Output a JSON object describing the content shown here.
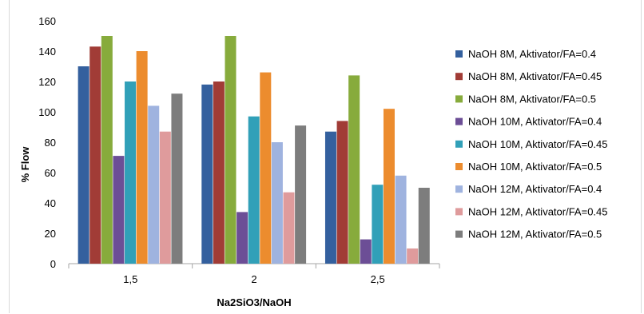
{
  "chart_data": {
    "type": "bar",
    "title": "",
    "xlabel": "Na2SiO3/NaOH",
    "ylabel": "% Flow",
    "ylim": [
      0,
      160
    ],
    "yticks": [
      0,
      20,
      40,
      60,
      80,
      100,
      120,
      140,
      160
    ],
    "categories": [
      "1,5",
      "2",
      "2,5"
    ],
    "grid": false,
    "legend_position": "right",
    "series": [
      {
        "name": "NaOH 8M, Aktivator/FA=0.4",
        "color": "#34609e",
        "values": [
          130,
          118,
          87
        ]
      },
      {
        "name": "NaOH 8M, Aktivator/FA=0.45",
        "color": "#a13c36",
        "values": [
          143,
          120,
          94
        ]
      },
      {
        "name": "NaOH 8M, Aktivator/FA=0.5",
        "color": "#87ab3c",
        "values": [
          150,
          150,
          124
        ]
      },
      {
        "name": "NaOH 10M, Aktivator/FA=0.4",
        "color": "#6c4e96",
        "values": [
          71,
          34,
          16
        ]
      },
      {
        "name": "NaOH 10M, Aktivator/FA=0.45",
        "color": "#31a0b8",
        "values": [
          120,
          97,
          52
        ]
      },
      {
        "name": "NaOH 10M, Aktivator/FA=0.5",
        "color": "#ec8c2e",
        "values": [
          140,
          126,
          102
        ]
      },
      {
        "name": "NaOH 12M, Aktivator/FA=0.4",
        "color": "#9fb3df",
        "values": [
          104,
          80,
          58
        ]
      },
      {
        "name": "NaOH 12M, Aktivator/FA=0.45",
        "color": "#df9b9c",
        "values": [
          87,
          47,
          10
        ]
      },
      {
        "name": "NaOH 12M, Aktivator/FA=0.5",
        "color": "#7d7d7d",
        "values": [
          112,
          91,
          50
        ]
      }
    ]
  }
}
